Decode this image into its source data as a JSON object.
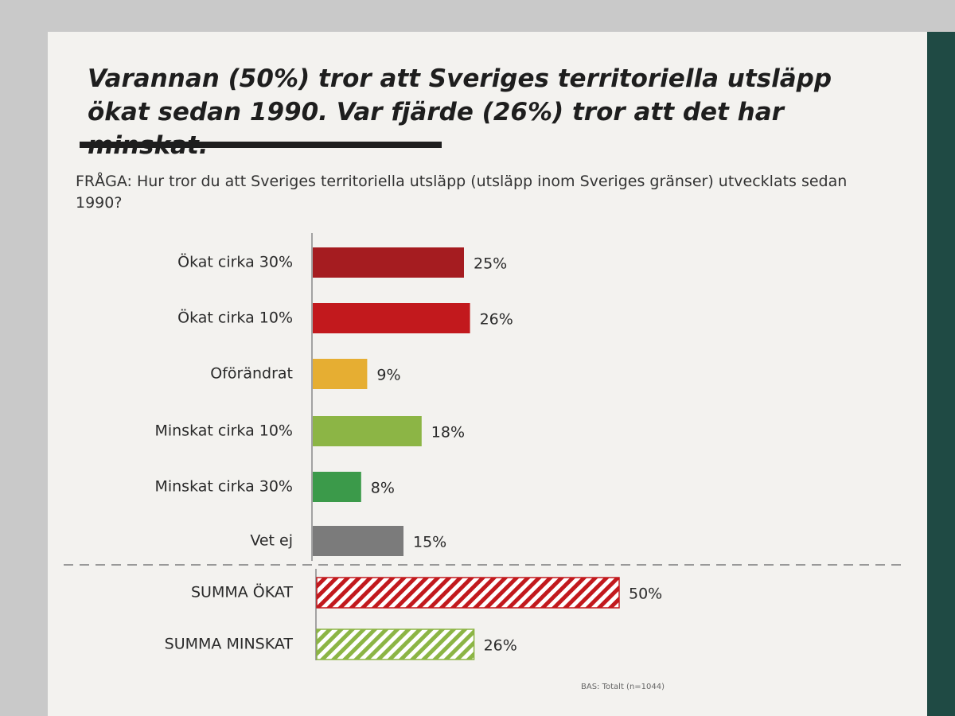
{
  "chart_data": {
    "type": "bar",
    "title": "Varannan (50%) tror att Sveriges territoriella utsläpp ökat sedan 1990. Var fjärde (26%) tror att det har minskat.",
    "subtitle": "FRÅGA: Hur tror du att Sveriges territoriella utsläpp (utsläpp inom Sveriges gränser) utvecklats sedan 1990?",
    "note": "BAS: Totalt (n=1044)",
    "categories": [
      "Ökat cirka 30%",
      "Ökat cirka 10%",
      "Oförändrat",
      "Minskat cirka 10%",
      "Minskat cirka 30%",
      "Vet ej",
      "SUMMA ÖKAT",
      "SUMMA MINSKAT"
    ],
    "values": [
      25,
      26,
      9,
      18,
      8,
      15,
      50,
      26
    ],
    "value_labels": [
      "25%",
      "26%",
      "9%",
      "18%",
      "8%",
      "15%",
      "50%",
      "26%"
    ],
    "colors": [
      "#a51c20",
      "#c2191d",
      "#e6ae32",
      "#8cb545",
      "#3b9a4a",
      "#7b7b7b",
      "#c2191d",
      "#8cb545"
    ],
    "hatched": [
      false,
      false,
      false,
      false,
      false,
      false,
      true,
      true
    ]
  }
}
